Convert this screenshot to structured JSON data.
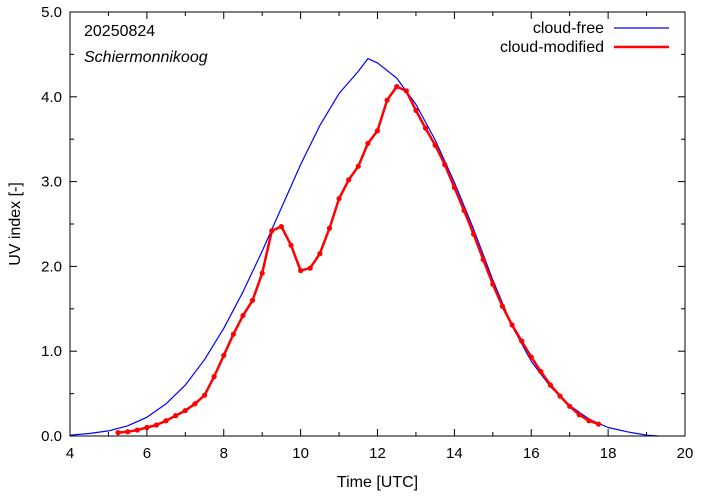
{
  "chart_data": {
    "type": "line",
    "title": "",
    "annotations": [
      "20250824",
      "Schiermonnikoog"
    ],
    "xlabel": "Time  [UTC]",
    "ylabel": "UV index  [-]",
    "xlim": [
      4,
      20
    ],
    "ylim": [
      0,
      5
    ],
    "x_ticks": [
      4,
      6,
      8,
      10,
      12,
      14,
      16,
      18,
      20
    ],
    "y_ticks": [
      0,
      1,
      2,
      3,
      4,
      5
    ],
    "y_tick_labels": [
      "0.0",
      "1.0",
      "2.0",
      "3.0",
      "4.0",
      "5.0"
    ],
    "grid": false,
    "legend_position": "top-right",
    "series": [
      {
        "name": "cloud-free",
        "color": "#0000ff",
        "markers": false,
        "x": [
          4.0,
          4.5,
          5.0,
          5.5,
          6.0,
          6.5,
          7.0,
          7.5,
          8.0,
          8.5,
          9.0,
          9.5,
          10.0,
          10.5,
          11.0,
          11.5,
          11.75,
          12.0,
          12.5,
          13.0,
          13.5,
          14.0,
          14.5,
          15.0,
          15.5,
          16.0,
          16.5,
          17.0,
          17.5,
          18.0,
          18.5,
          19.0,
          19.3
        ],
        "y": [
          0.01,
          0.03,
          0.06,
          0.12,
          0.22,
          0.38,
          0.6,
          0.9,
          1.27,
          1.7,
          2.18,
          2.69,
          3.2,
          3.66,
          4.04,
          4.3,
          4.45,
          4.4,
          4.22,
          3.91,
          3.49,
          2.99,
          2.44,
          1.84,
          1.3,
          0.88,
          0.58,
          0.36,
          0.2,
          0.1,
          0.05,
          0.01,
          0.0
        ]
      },
      {
        "name": "cloud-modified",
        "color": "#ff0000",
        "markers": true,
        "x": [
          5.25,
          5.5,
          5.75,
          6.0,
          6.25,
          6.5,
          6.75,
          7.0,
          7.25,
          7.5,
          7.75,
          8.0,
          8.25,
          8.5,
          8.75,
          9.0,
          9.25,
          9.5,
          9.75,
          10.0,
          10.25,
          10.5,
          10.75,
          11.0,
          11.25,
          11.5,
          11.75,
          12.0,
          12.25,
          12.5,
          12.75,
          13.0,
          13.25,
          13.5,
          13.75,
          14.0,
          14.25,
          14.5,
          14.75,
          15.0,
          15.25,
          15.5,
          15.75,
          16.0,
          16.25,
          16.5,
          16.75,
          17.0,
          17.25,
          17.5,
          17.75
        ],
        "y": [
          0.04,
          0.05,
          0.07,
          0.1,
          0.13,
          0.18,
          0.24,
          0.3,
          0.38,
          0.48,
          0.7,
          0.95,
          1.2,
          1.42,
          1.6,
          1.92,
          2.42,
          2.47,
          2.25,
          1.95,
          1.98,
          2.15,
          2.45,
          2.8,
          3.02,
          3.18,
          3.45,
          3.6,
          3.96,
          4.12,
          4.07,
          3.84,
          3.63,
          3.43,
          3.2,
          2.93,
          2.66,
          2.38,
          2.08,
          1.79,
          1.53,
          1.31,
          1.12,
          0.93,
          0.76,
          0.6,
          0.47,
          0.35,
          0.25,
          0.18,
          0.14
        ]
      }
    ]
  }
}
